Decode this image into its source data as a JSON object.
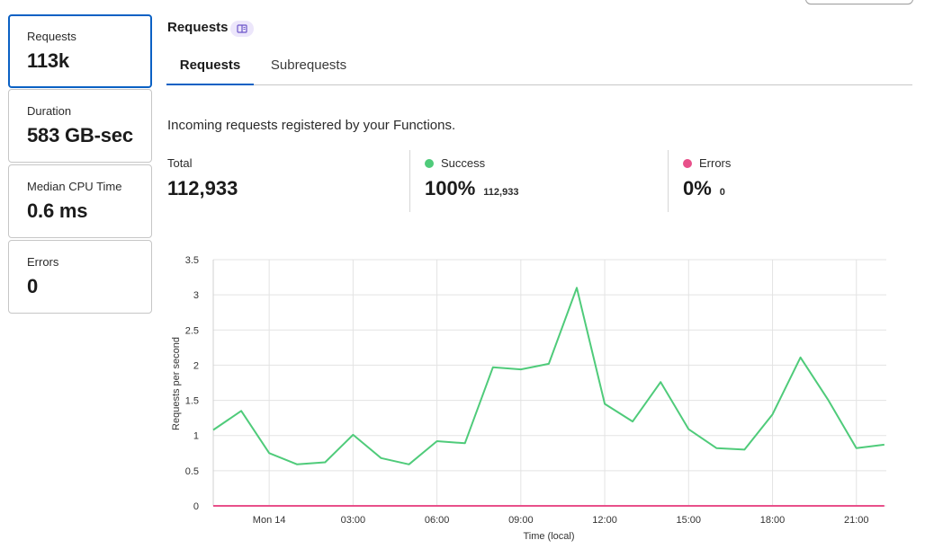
{
  "metrics": [
    {
      "label": "Requests",
      "value": "113k",
      "active": true
    },
    {
      "label": "Duration",
      "value": "583 GB-sec",
      "active": false
    },
    {
      "label": "Median CPU Time",
      "value": "0.6 ms",
      "active": false
    },
    {
      "label": "Errors",
      "value": "0",
      "active": false
    }
  ],
  "section": {
    "title": "Requests",
    "badge_icon": "document-icon"
  },
  "tabs": [
    {
      "label": "Requests",
      "active": true
    },
    {
      "label": "Subrequests",
      "active": false
    }
  ],
  "description": "Incoming requests registered by your Functions.",
  "stats": {
    "total": {
      "label": "Total",
      "value": "112,933"
    },
    "success": {
      "label": "Success",
      "value": "100%",
      "count": "112,933",
      "color": "#4fcb7a"
    },
    "errors": {
      "label": "Errors",
      "value": "0%",
      "count": "0",
      "color": "#e8508a"
    }
  },
  "chart_data": {
    "type": "line",
    "ylabel": "Requests per second",
    "xlabel": "Time (local)",
    "ylim": [
      0,
      3.5
    ],
    "yticks": [
      "0",
      "0.5",
      "1",
      "1.5",
      "2",
      "2.5",
      "3",
      "3.5"
    ],
    "xtick_labels": [
      "Mon 14",
      "03:00",
      "06:00",
      "09:00",
      "12:00",
      "15:00",
      "18:00",
      "21:00"
    ],
    "xtick_hours": [
      0,
      3,
      6,
      9,
      12,
      15,
      18,
      21
    ],
    "xlim_hours": [
      -2,
      22.07
    ],
    "grid": true,
    "series": [
      {
        "color": "#4fcb7a",
        "x": [
          -2,
          -1,
          0,
          1,
          2,
          3,
          4,
          5,
          6,
          7,
          8,
          9,
          10,
          11,
          12,
          13,
          14,
          15,
          16,
          17,
          18,
          19,
          20,
          21,
          22
        ],
        "values": [
          1.08,
          1.35,
          0.75,
          0.59,
          0.62,
          1.01,
          0.68,
          0.59,
          0.92,
          0.89,
          1.97,
          1.94,
          2.02,
          3.1,
          1.45,
          1.2,
          1.76,
          1.09,
          0.82,
          0.8,
          1.3,
          2.11,
          1.5,
          0.82,
          0.87
        ]
      },
      {
        "color": "#e8508a",
        "x": [
          -2,
          22
        ],
        "values": [
          0,
          0
        ]
      }
    ]
  }
}
